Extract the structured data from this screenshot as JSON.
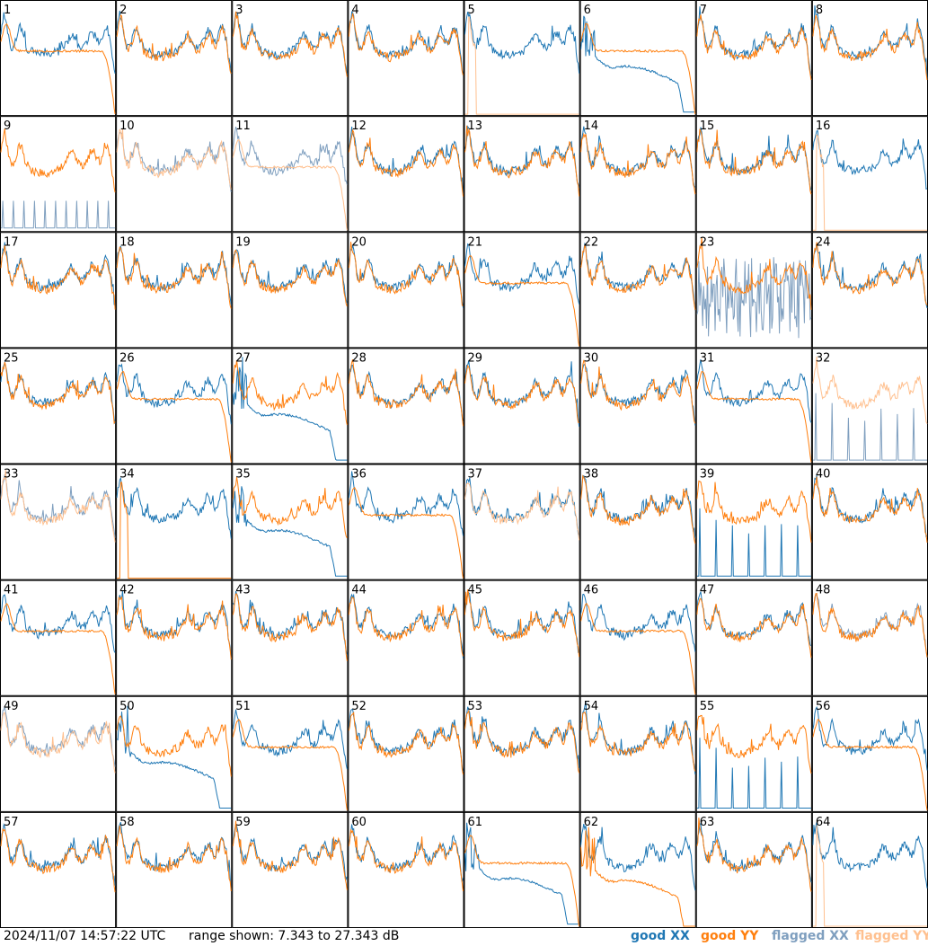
{
  "chart_data": {
    "type": "line",
    "layout": "small-multiples",
    "panel_labels": [
      "1",
      "2",
      "3",
      "4",
      "5",
      "6",
      "7",
      "8",
      "9",
      "10",
      "11",
      "12",
      "13",
      "14",
      "15",
      "16",
      "17",
      "18",
      "19",
      "20",
      "21",
      "22",
      "23",
      "24",
      "25",
      "26",
      "27",
      "28",
      "29",
      "30",
      "31",
      "32",
      "33",
      "34",
      "35",
      "36",
      "37",
      "38",
      "39",
      "40",
      "41",
      "42",
      "43",
      "44",
      "45",
      "46",
      "47",
      "48",
      "49",
      "50",
      "51",
      "52",
      "53",
      "54",
      "55",
      "56",
      "57",
      "58",
      "59",
      "60",
      "61",
      "62",
      "63",
      "64"
    ],
    "y_range_db": [
      7.343,
      27.343
    ],
    "grid": false,
    "series": [
      {
        "name": "good XX",
        "color": "#1f77b4"
      },
      {
        "name": "good YY",
        "color": "#ff7f0e"
      },
      {
        "name": "flagged XX",
        "color": "#7f9fbf"
      },
      {
        "name": "flagged YY",
        "color": "#ffc08f"
      }
    ],
    "panel_status": {
      "5": {
        "yy": "flagged-zero"
      },
      "6": {
        "xx": "sag",
        "yy": "flat"
      },
      "9": {
        "xx": "flagged-spiky"
      },
      "10": {
        "xx": "flagged",
        "yy": "flagged"
      },
      "11": {
        "xx": "flagged",
        "yy": "flagged"
      },
      "16": {
        "yy": "flagged-zero"
      },
      "23": {
        "xx": "flagged-noisy"
      },
      "27": {
        "xx": "sag"
      },
      "32": {
        "xx": "flagged-zero",
        "yy": "flagged"
      },
      "33": {
        "xx": "flagged",
        "yy": "flagged"
      },
      "34": {
        "yy": "zero-spiky"
      },
      "35": {
        "xx": "sag"
      },
      "37": {
        "yy": "flagged"
      },
      "39": {
        "xx": "zero-spike"
      },
      "48": {
        "xx": "flagged"
      },
      "49": {
        "xx": "flagged",
        "yy": "flagged"
      },
      "50": {
        "xx": "sag"
      },
      "55": {
        "xx": "zero-spiky"
      },
      "61": {
        "xx": "sag"
      },
      "62": {
        "yy": "sag"
      },
      "64": {
        "yy": "flagged-zero"
      }
    }
  },
  "footer": {
    "timestamp": "2024/11/07 14:57:22 UTC",
    "range_text": "range shown: 7.343 to 27.343 dB",
    "legend": [
      {
        "label": "good XX",
        "color": "#1f77b4"
      },
      {
        "label": "good YY",
        "color": "#ff7f0e"
      },
      {
        "label": "flagged XX",
        "color": "#7f9fbf"
      },
      {
        "label": "flagged YY",
        "color": "#ffc08f"
      }
    ]
  }
}
